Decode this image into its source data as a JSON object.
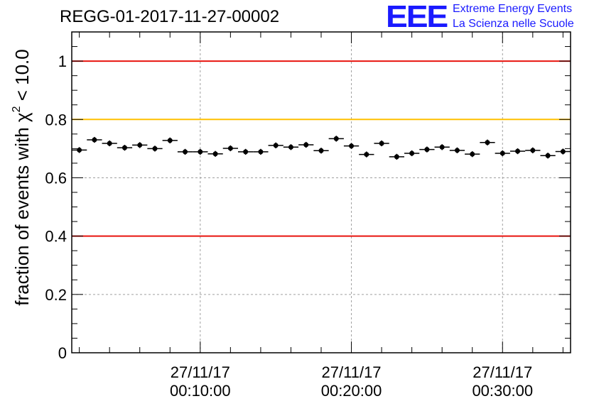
{
  "chart_data": {
    "type": "scatter",
    "title": "REGG-01-2017-11-27-00002",
    "ylabel": {
      "prefix": "fraction of events with ",
      "symbol": "χ",
      "exponent": "2",
      "suffix": " < 10.0"
    },
    "xlabel": "",
    "xlim_minutes": [
      1.5,
      34.5
    ],
    "ylim": [
      0,
      1.1
    ],
    "yticks": [
      {
        "value": 0,
        "label": "0"
      },
      {
        "value": 0.2,
        "label": "0.2"
      },
      {
        "value": 0.4,
        "label": "0.4"
      },
      {
        "value": 0.6,
        "label": "0.6"
      },
      {
        "value": 0.8,
        "label": "0.8"
      },
      {
        "value": 1.0,
        "label": "1"
      }
    ],
    "xticks": [
      {
        "minute": 10,
        "date": "27/11/17",
        "time": "00:10:00"
      },
      {
        "minute": 20,
        "date": "27/11/17",
        "time": "00:20:00"
      },
      {
        "minute": 30,
        "date": "27/11/17",
        "time": "00:30:00"
      }
    ],
    "grid": true,
    "reference_lines": [
      {
        "value": 1.0,
        "color": "#e8140f"
      },
      {
        "value": 0.8,
        "color": "#ffc000"
      },
      {
        "value": 0.4,
        "color": "#e8140f"
      }
    ],
    "bin_width_minutes": 1,
    "x": [
      2,
      3,
      4,
      5,
      6,
      7,
      8,
      9,
      10,
      11,
      12,
      13,
      14,
      15,
      16,
      17,
      18,
      19,
      20,
      21,
      22,
      23,
      24,
      25,
      26,
      27,
      28,
      29,
      30,
      31,
      32,
      33,
      34
    ],
    "values": [
      0.695,
      0.73,
      0.718,
      0.703,
      0.712,
      0.7,
      0.728,
      0.689,
      0.689,
      0.682,
      0.701,
      0.689,
      0.689,
      0.711,
      0.705,
      0.713,
      0.693,
      0.734,
      0.709,
      0.68,
      0.718,
      0.672,
      0.684,
      0.697,
      0.705,
      0.694,
      0.681,
      0.721,
      0.684,
      0.691,
      0.694,
      0.676,
      0.69
    ],
    "errors": [
      0.01,
      0.01,
      0.01,
      0.01,
      0.01,
      0.01,
      0.01,
      0.01,
      0.01,
      0.01,
      0.01,
      0.01,
      0.01,
      0.01,
      0.01,
      0.01,
      0.01,
      0.01,
      0.01,
      0.01,
      0.01,
      0.01,
      0.01,
      0.01,
      0.01,
      0.01,
      0.01,
      0.01,
      0.01,
      0.01,
      0.01,
      0.01,
      0.01
    ],
    "marker_color": "#000000"
  },
  "logo": {
    "mark": "EEE",
    "line1": "Extreme Energy Events",
    "line2": "La Scienza nelle Scuole",
    "color": "#1a1aff"
  }
}
